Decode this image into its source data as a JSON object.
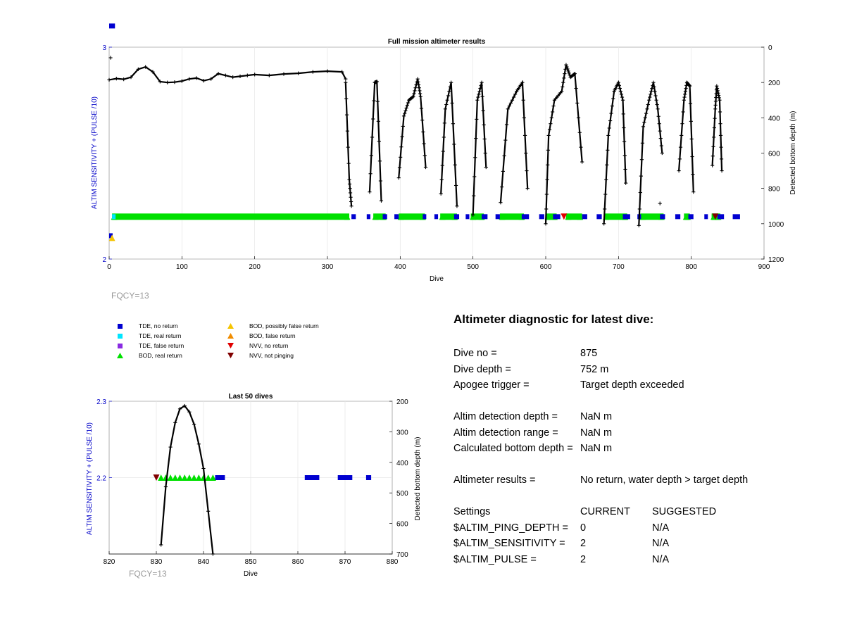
{
  "main_chart": {
    "title": "Full mission altimeter results",
    "xlabel": "Dive",
    "ylabel_left": "ALTIM SENSITIVITY + (PULSE /10)",
    "ylabel_right": "Detected bottom depth (m)",
    "xticks": [
      "0",
      "100",
      "200",
      "300",
      "400",
      "500",
      "600",
      "700",
      "800",
      "900"
    ],
    "yticks_left": [
      "2",
      "3"
    ],
    "yticks_right": [
      "0",
      "200",
      "400",
      "600",
      "800",
      "1000",
      "1200"
    ],
    "fqcy": "FQCY=13"
  },
  "last50_chart": {
    "title": "Last 50 dives",
    "xlabel": "Dive",
    "ylabel_left": "ALTIM SENSITIVITY + (PULSE /10)",
    "ylabel_right": "Detected bottom depth (m)",
    "xticks": [
      "820",
      "830",
      "840",
      "850",
      "860",
      "870",
      "880"
    ],
    "yticks_left": [
      "2.2",
      "2.3"
    ],
    "yticks_right": [
      "200",
      "300",
      "400",
      "500",
      "600",
      "700"
    ],
    "fqcy": "FQCY=13"
  },
  "legend": [
    {
      "label": "TDE, no return",
      "symbol": "square",
      "color": "#0000d0"
    },
    {
      "label": "TDE, real return",
      "symbol": "square",
      "color": "#00e5ff"
    },
    {
      "label": "TDE, false return",
      "symbol": "square",
      "color": "#8a2be2"
    },
    {
      "label": "BOD, real return",
      "symbol": "triangle-up",
      "color": "#00e000"
    },
    {
      "label": "BOD, possibly false return",
      "symbol": "triangle-up",
      "color": "#f5c400"
    },
    {
      "label": "BOD, false return",
      "symbol": "triangle-up",
      "color": "#f08c00"
    },
    {
      "label": "NVV, no return",
      "symbol": "triangle-down",
      "color": "#e00000"
    },
    {
      "label": "NVV, not pinging",
      "symbol": "triangle-down",
      "color": "#800000"
    }
  ],
  "diagnostic": {
    "title": "Altimeter diagnostic for latest dive:",
    "rows": [
      {
        "label": "Dive no =",
        "value": "875"
      },
      {
        "label": "Dive depth =",
        "value": "752 m"
      },
      {
        "label": "Apogee trigger =",
        "value": "Target depth exceeded"
      },
      {
        "label": "Altim detection depth =",
        "value": "NaN m"
      },
      {
        "label": "Altim detection range =",
        "value": "NaN m"
      },
      {
        "label": "Calculated bottom depth =",
        "value": "NaN m"
      },
      {
        "label": "Altimeter results =",
        "value": "No return, water depth > target depth"
      }
    ],
    "settings_header": {
      "label": "Settings",
      "current": "CURRENT",
      "suggested": "SUGGESTED"
    },
    "settings": [
      {
        "name": "$ALTIM_PING_DEPTH =",
        "current": "0",
        "suggested": "N/A"
      },
      {
        "name": "$ALTIM_SENSITIVITY =",
        "current": "2",
        "suggested": "N/A"
      },
      {
        "name": "$ALTIM_PULSE =",
        "current": "2",
        "suggested": "N/A"
      }
    ]
  },
  "chart_data": [
    {
      "type": "scatter",
      "title": "Full mission altimeter results",
      "xlabel": "Dive",
      "ylabel_left": "ALTIM SENSITIVITY + (PULSE /10)",
      "ylabel_right": "Detected bottom depth (m)",
      "xlim": [
        0,
        900
      ],
      "ylim_left": [
        2,
        3
      ],
      "ylim_right": [
        1200,
        0
      ],
      "grid": true,
      "settings_segments": [
        {
          "symbol": "BOD, real return",
          "y": 2.2,
          "ranges": [
            [
              4,
              330
            ],
            [
              363,
              380
            ],
            [
              398,
              434
            ],
            [
              455,
              478
            ],
            [
              497,
              515
            ],
            [
              537,
              570
            ],
            [
              600,
              615
            ],
            [
              628,
              650
            ],
            [
              680,
              712
            ],
            [
              730,
              762
            ],
            [
              790,
              798
            ],
            [
              828,
              840
            ]
          ]
        },
        {
          "symbol": "TDE, no return",
          "y": 2.2,
          "ranges": [
            [
              333,
              339
            ],
            [
              354,
              359
            ],
            [
              376,
              382
            ],
            [
              392,
              398
            ],
            [
              431,
              435
            ],
            [
              447,
              452
            ],
            [
              474,
              481
            ],
            [
              490,
              495
            ],
            [
              512,
              520
            ],
            [
              531,
              537
            ],
            [
              567,
              577
            ],
            [
              591,
              598
            ],
            [
              610,
              620
            ],
            [
              650,
              657
            ],
            [
              670,
              677
            ],
            [
              706,
              716
            ],
            [
              726,
              731
            ],
            [
              757,
              764
            ],
            [
              778,
              785
            ],
            [
              796,
              803
            ],
            [
              818,
              822
            ],
            [
              836,
              845
            ],
            [
              857,
              867
            ]
          ]
        },
        {
          "symbol": "TDE, real return",
          "y": 2.2,
          "ranges": [
            [
              4,
              6
            ]
          ]
        },
        {
          "symbol": "TDE, no return",
          "y": 3.1,
          "ranges": [
            [
              0,
              8
            ]
          ]
        },
        {
          "symbol": "TDE, no return",
          "y": 2.11,
          "ranges": [
            [
              0,
              3
            ]
          ]
        }
      ],
      "extra_points": [
        {
          "series": "BOD, possibly false return",
          "x": 4,
          "y": 2.1
        },
        {
          "series": "NVV, no return",
          "x": 625,
          "y": 2.2
        },
        {
          "series": "NVV, not pinging",
          "x": 833,
          "y": 2.2
        }
      ],
      "depth_series": {
        "name": "Detected bottom depth",
        "flat_segment": [
          [
            0,
            185
          ],
          [
            10,
            178
          ],
          [
            20,
            182
          ],
          [
            30,
            170
          ],
          [
            40,
            125
          ],
          [
            50,
            112
          ],
          [
            60,
            140
          ],
          [
            70,
            195
          ],
          [
            80,
            200
          ],
          [
            90,
            198
          ],
          [
            100,
            192
          ],
          [
            110,
            180
          ],
          [
            120,
            175
          ],
          [
            130,
            190
          ],
          [
            140,
            180
          ],
          [
            150,
            150
          ],
          [
            160,
            160
          ],
          [
            170,
            170
          ],
          [
            180,
            165
          ],
          [
            190,
            160
          ],
          [
            200,
            155
          ],
          [
            220,
            160
          ],
          [
            240,
            152
          ],
          [
            260,
            148
          ],
          [
            280,
            140
          ],
          [
            300,
            136
          ],
          [
            320,
            140
          ],
          [
            325,
            180
          ]
        ],
        "dives": [
          {
            "x": [
              325,
              330,
              333
            ],
            "d": [
              200,
              750,
              900
            ]
          },
          {
            "x": [
              358,
              365,
              368,
              374
            ],
            "d": [
              820,
              200,
              195,
              870
            ]
          },
          {
            "x": [
              398,
              405,
              412,
              418,
              424,
              428,
              435
            ],
            "d": [
              740,
              390,
              300,
              280,
              180,
              280,
              680
            ]
          },
          {
            "x": [
              456,
              462,
              470,
              478
            ],
            "d": [
              830,
              350,
              200,
              900
            ]
          },
          {
            "x": [
              500,
              506,
              512,
              518
            ],
            "d": [
              950,
              300,
              200,
              680
            ]
          },
          {
            "x": [
              538,
              548,
              560,
              568,
              575
            ],
            "d": [
              880,
              350,
              250,
              200,
              800
            ]
          },
          {
            "x": [
              600,
              604,
              612,
              622,
              628,
              634,
              640,
              650
            ],
            "d": [
              1000,
              500,
              300,
              250,
              100,
              170,
              150,
              650
            ]
          },
          {
            "x": [
              680,
              686,
              694,
              700,
              706,
              710
            ],
            "d": [
              1000,
              500,
              250,
              200,
              300,
              770
            ]
          },
          {
            "x": [
              728,
              734,
              742,
              748,
              754,
              760
            ],
            "d": [
              1010,
              450,
              300,
              200,
              350,
              600
            ]
          },
          {
            "x": [
              783,
              790,
              794,
              798,
              803
            ],
            "d": [
              700,
              300,
              200,
              220,
              820
            ]
          },
          {
            "x": [
              829,
              833,
              835,
              839,
              842
            ],
            "d": [
              670,
              350,
              220,
              300,
              700
            ]
          }
        ],
        "outliers": [
          {
            "x": 2,
            "d": 60
          },
          {
            "x": 757,
            "d": 885
          }
        ]
      }
    },
    {
      "type": "scatter",
      "title": "Last 50 dives",
      "xlabel": "Dive",
      "ylabel_left": "ALTIM SENSITIVITY + (PULSE /10)",
      "ylabel_right": "Detected bottom depth (m)",
      "xlim": [
        820,
        880
      ],
      "ylim_left": [
        2.1,
        2.3
      ],
      "ylim_right": [
        700,
        200
      ],
      "grid": true,
      "series": [
        {
          "name": "BOD, real return",
          "y": 2.2,
          "x": [
            831,
            832,
            833,
            834,
            835,
            836,
            837,
            838,
            839,
            840,
            841,
            842
          ]
        },
        {
          "name": "TDE, no return",
          "y": 2.2,
          "x": [
            843,
            844,
            862,
            863,
            864,
            869,
            870,
            871,
            875
          ]
        },
        {
          "name": "NVV, not pinging",
          "y": 2.2,
          "x": [
            830
          ]
        }
      ],
      "depth_series": {
        "name": "Detected bottom depth",
        "x": [
          831,
          832,
          833,
          834,
          835,
          836,
          837,
          838,
          839,
          840,
          841,
          842
        ],
        "d": [
          670,
          480,
          350,
          270,
          225,
          215,
          235,
          275,
          340,
          420,
          560,
          700
        ]
      }
    }
  ]
}
